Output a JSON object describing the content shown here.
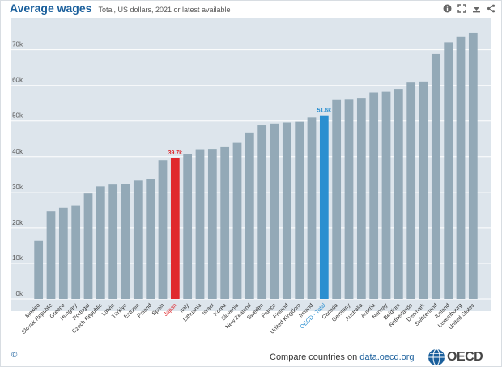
{
  "header": {
    "title": "Average wages",
    "subtitle": "Total, US dollars, 2021 or latest available"
  },
  "toolbar": {
    "icons": [
      "info-icon",
      "fullscreen-icon",
      "download-icon",
      "share-icon"
    ]
  },
  "footer": {
    "copyright": "©",
    "compare_text": "Compare countries on ",
    "compare_link": "data.oecd.org",
    "logo_text": "OECD"
  },
  "colors": {
    "default_bar": "#93a9b7",
    "highlight_japan": "#e0292d",
    "highlight_oecd": "#2a8fd0",
    "plot_background": "#dde5ec",
    "gridline": "#ffffff"
  },
  "chart_data": {
    "type": "bar",
    "title": "Average wages",
    "subtitle": "Total, US dollars, 2021 or latest available",
    "xlabel": "",
    "ylabel": "",
    "ylim": [
      0,
      79000
    ],
    "yticks": [
      0,
      10000,
      20000,
      30000,
      40000,
      50000,
      60000,
      70000
    ],
    "ytick_labels": [
      "0k",
      "10k",
      "20k",
      "30k",
      "40k",
      "50k",
      "60k",
      "70k"
    ],
    "grid": true,
    "categories": [
      "Mexico",
      "Slovak Republic",
      "Greece",
      "Hungary",
      "Portugal",
      "Czech Republic",
      "Latvia",
      "Türkiye",
      "Estonia",
      "Poland",
      "Spain",
      "Japan",
      "Italy",
      "Lithuania",
      "Israel",
      "Korea",
      "Slovenia",
      "New Zealand",
      "Sweden",
      "France",
      "Finland",
      "United Kingdom",
      "Ireland",
      "OECD - Total",
      "Canada",
      "Germany",
      "Australia",
      "Austria",
      "Norway",
      "Belgium",
      "Netherlands",
      "Denmark",
      "Switzerland",
      "Iceland",
      "Luxembourg",
      "United States"
    ],
    "values": [
      16400,
      24700,
      25700,
      26200,
      29700,
      31700,
      32200,
      32400,
      33300,
      33600,
      39000,
      39700,
      40700,
      42100,
      42200,
      42700,
      43900,
      46800,
      48800,
      49300,
      49600,
      49800,
      51000,
      51600,
      55900,
      56000,
      56500,
      58000,
      58200,
      59000,
      60800,
      61100,
      68800,
      72100,
      73600,
      74700
    ],
    "highlighted": {
      "Japan": {
        "label": "39.7k",
        "color": "#e0292d"
      },
      "OECD - Total": {
        "label": "51.6k",
        "color": "#2a8fd0"
      }
    }
  }
}
